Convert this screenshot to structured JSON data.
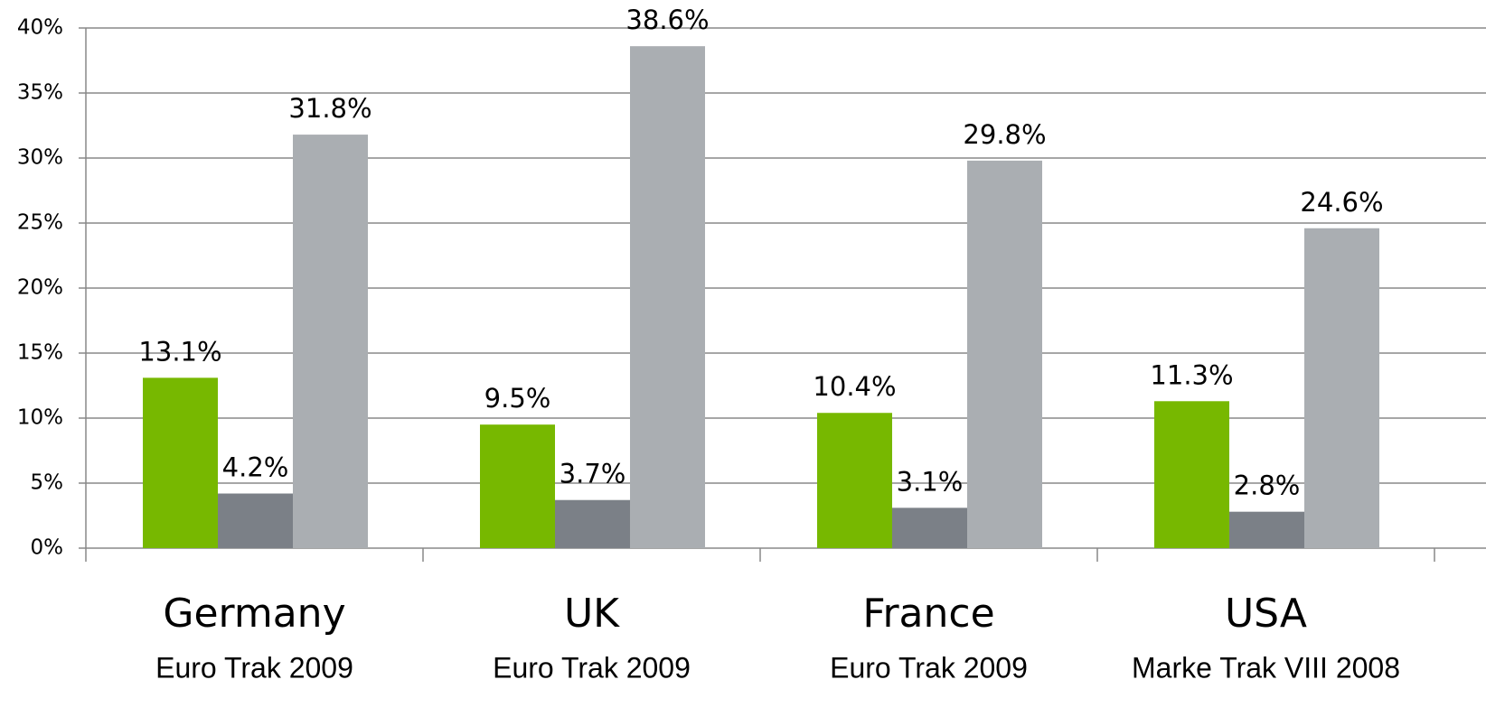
{
  "chart_data": {
    "type": "bar",
    "categories": [
      "Germany",
      "UK",
      "France",
      "USA"
    ],
    "category_sources": [
      "Euro Trak 2009",
      "Euro Trak 2009",
      "Euro Trak 2009",
      "Marke Trak VIII 2008"
    ],
    "series": [
      {
        "color": "#77b800",
        "values": [
          13.1,
          9.5,
          10.4,
          11.3
        ],
        "value_labels": [
          "13.1%",
          "9.5%",
          "10.4%",
          "11.3%"
        ]
      },
      {
        "color": "#7b8087",
        "values": [
          4.2,
          3.7,
          3.1,
          2.8
        ],
        "value_labels": [
          "4.2%",
          "3.7%",
          "3.1%",
          "2.8%"
        ]
      },
      {
        "color": "#aaaeb2",
        "values": [
          31.8,
          38.6,
          29.8,
          24.6
        ],
        "value_labels": [
          "31.8%",
          "38.6%",
          "29.8%",
          "24.6%"
        ]
      }
    ],
    "ylim": [
      0,
      40
    ],
    "yticks": [
      {
        "value": 0,
        "label": "0%"
      },
      {
        "value": 5,
        "label": "5%"
      },
      {
        "value": 10,
        "label": "10%"
      },
      {
        "value": 15,
        "label": "15%"
      },
      {
        "value": 20,
        "label": "20%"
      },
      {
        "value": 25,
        "label": "25%"
      },
      {
        "value": 30,
        "label": "30%"
      },
      {
        "value": 35,
        "label": "35%"
      },
      {
        "value": 40,
        "label": "40%"
      }
    ],
    "grid": true
  }
}
